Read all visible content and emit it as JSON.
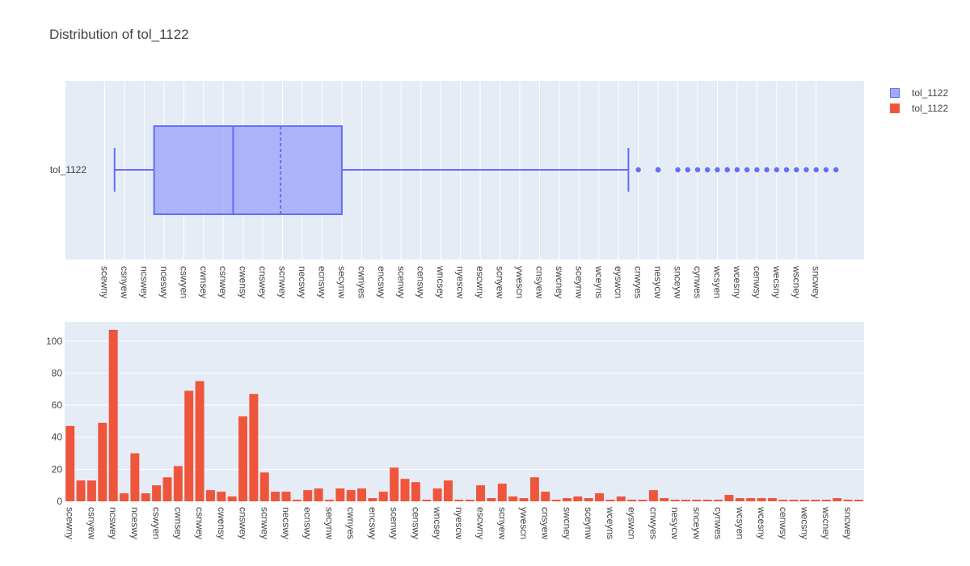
{
  "chart_data": [
    {
      "type": "box",
      "title": "Distribution of tol_1122",
      "series_name": "tol_1122",
      "orientation": "horizontal",
      "category_label": "tol_1122",
      "x_categories": [
        "scewny",
        "csnyew",
        "ncswey",
        "nceswy",
        "cswyen",
        "cwnsey",
        "csnwey",
        "cwensy",
        "cnswey",
        "scnwey",
        "necswy",
        "ecnswy",
        "secynw",
        "cwnyes",
        "encswy",
        "scenwy",
        "censwy",
        "wncsey",
        "nyescw",
        "escwny",
        "scnyew",
        "ywescn",
        "cnsyew",
        "swcney",
        "sceynw",
        "wceyns",
        "eyswcn",
        "cnwyes",
        "nesycw",
        "snceyw",
        "cynwes",
        "wcsyen",
        "wcesny",
        "cenwsy",
        "wecsny",
        "wscney",
        "sncwey"
      ],
      "box": {
        "lower_fence": 0.5,
        "q1": 2.5,
        "median": 6.5,
        "mean": 8.9,
        "q3": 12.0,
        "upper_fence": 26.5
      },
      "outliers": [
        27.0,
        28.0,
        28.0,
        28.0,
        29.0,
        29.5,
        30.0,
        30.5,
        31.0,
        31.5,
        31.5,
        32.0,
        32.5,
        33.0,
        33.5,
        34.0,
        34.5,
        35.0,
        35.5,
        36.0,
        36.5,
        37.0
      ],
      "colors": {
        "box_line": "#636efa",
        "box_fill": "#a3a9f7"
      }
    },
    {
      "type": "bar",
      "series_name": "tol_1122",
      "color": "#ef553b",
      "ylim": [
        0,
        112
      ],
      "yticks": [
        0,
        20,
        40,
        60,
        80,
        100
      ],
      "tick_labels": [
        "scewny",
        "csnyew",
        "ncswey",
        "nceswy",
        "cswyen",
        "cwnsey",
        "csnwey",
        "cwensy",
        "cnswey",
        "scnwey",
        "necswy",
        "ecnswy",
        "secynw",
        "cwnyes",
        "encswy",
        "scenwy",
        "censwy",
        "wncsey",
        "nyescw",
        "escwny",
        "scnyew",
        "ywescn",
        "cnsyew",
        "swcney",
        "sceynw",
        "wceyns",
        "eyswcn",
        "cnwyes",
        "nesycw",
        "snceyw",
        "cynwes",
        "wcsyen",
        "wcesny",
        "cenwsy",
        "wecsny",
        "wscney",
        "sncwey"
      ],
      "values": [
        47,
        13,
        13,
        49,
        107,
        5,
        30,
        5,
        10,
        15,
        22,
        69,
        75,
        7,
        6,
        3,
        53,
        67,
        18,
        6,
        6,
        1,
        7,
        8,
        1,
        8,
        7,
        8,
        2,
        6,
        21,
        14,
        12,
        1,
        8,
        13,
        1,
        1,
        10,
        2,
        11,
        3,
        2,
        15,
        6,
        1,
        2,
        3,
        2,
        5,
        1,
        3,
        1,
        1,
        7,
        2,
        1,
        1,
        1,
        1,
        1,
        4,
        2,
        2,
        2,
        2,
        1,
        1,
        1,
        1,
        1,
        2,
        1,
        1
      ]
    }
  ],
  "legend": {
    "items": [
      {
        "label": "tol_1122",
        "color": "#636efa",
        "fill": "#a3a9f7"
      },
      {
        "label": "tol_1122",
        "color": "#ef553b",
        "fill": "#ef553b"
      }
    ]
  }
}
